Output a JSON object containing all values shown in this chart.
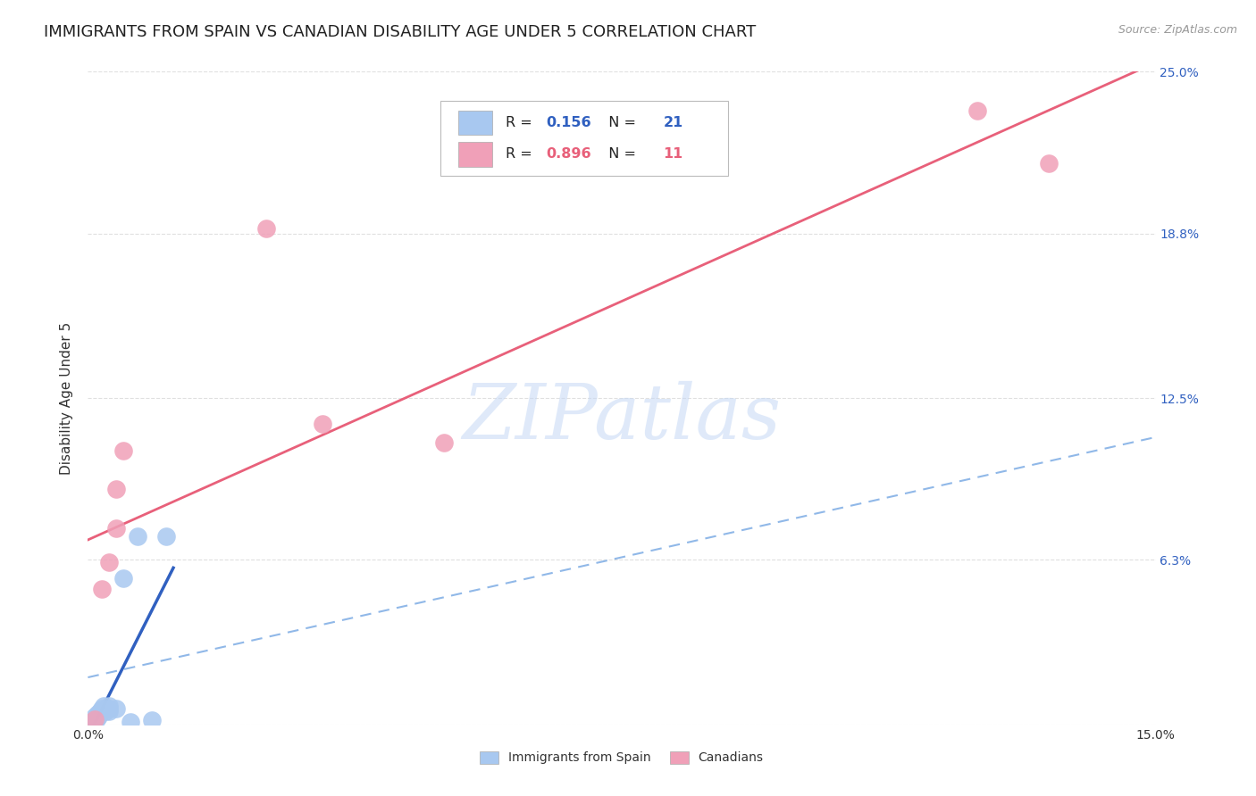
{
  "title": "IMMIGRANTS FROM SPAIN VS CANADIAN DISABILITY AGE UNDER 5 CORRELATION CHART",
  "source": "Source: ZipAtlas.com",
  "ylabel_label": "Disability Age Under 5",
  "xlim": [
    0.0,
    0.15
  ],
  "ylim": [
    0.0,
    0.25
  ],
  "background_color": "#ffffff",
  "grid_color": "#e0e0e0",
  "watermark_text": "ZIPatlas",
  "spain_points_x": [
    0.0005,
    0.0007,
    0.001,
    0.001,
    0.0012,
    0.0013,
    0.0015,
    0.0017,
    0.002,
    0.002,
    0.0022,
    0.0025,
    0.003,
    0.003,
    0.003,
    0.004,
    0.005,
    0.006,
    0.007,
    0.009,
    0.011
  ],
  "spain_points_y": [
    0.0008,
    0.001,
    0.0015,
    0.003,
    0.002,
    0.004,
    0.003,
    0.005,
    0.005,
    0.006,
    0.007,
    0.005,
    0.006,
    0.005,
    0.007,
    0.006,
    0.056,
    0.001,
    0.072,
    0.0015,
    0.072
  ],
  "spain_R": 0.156,
  "spain_N": 21,
  "spain_color": "#a8c8f0",
  "spain_line_color": "#3060c0",
  "spain_ci_color": "#90b8e8",
  "canada_points_x": [
    0.001,
    0.002,
    0.003,
    0.004,
    0.004,
    0.005,
    0.025,
    0.033,
    0.05,
    0.125,
    0.135
  ],
  "canada_points_y": [
    0.002,
    0.052,
    0.062,
    0.09,
    0.075,
    0.105,
    0.19,
    0.115,
    0.108,
    0.235,
    0.215
  ],
  "canada_R": 0.896,
  "canada_N": 11,
  "canada_color": "#f0a0b8",
  "canada_line_color": "#e8607a",
  "legend_spain_label": "Immigrants from Spain",
  "legend_canada_label": "Canadians",
  "legend_R_color_spain": "#3060c0",
  "legend_N_color_spain": "#3060c0",
  "legend_R_color_canada": "#e8607a",
  "legend_N_color_canada": "#e8607a",
  "title_fontsize": 13,
  "axis_label_fontsize": 11,
  "tick_fontsize": 10,
  "source_fontsize": 9
}
